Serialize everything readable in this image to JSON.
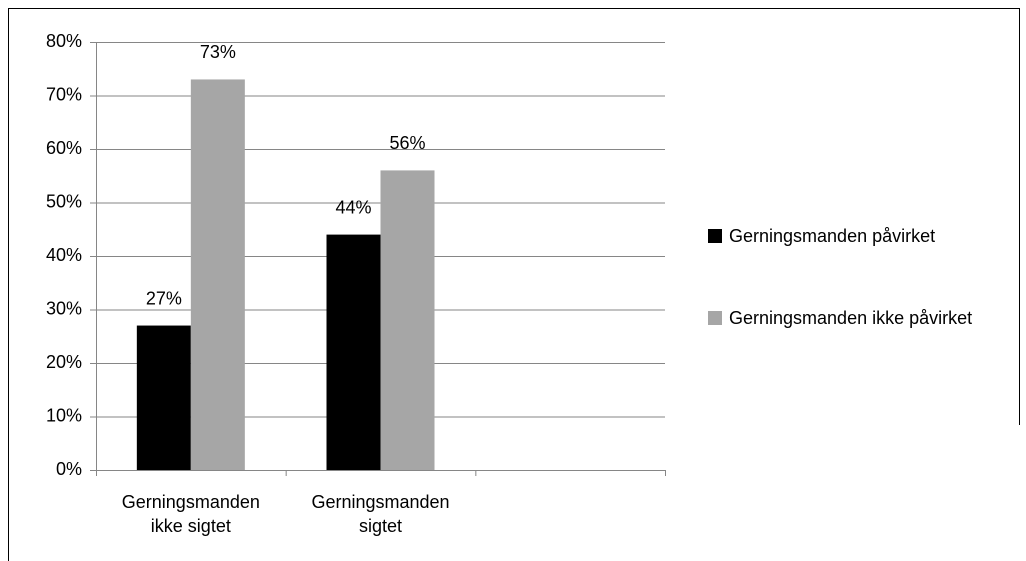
{
  "chart_data": {
    "type": "bar",
    "categories": [
      "Gerningsmanden ikke sigtet",
      "Gerningsmanden sigtet",
      null
    ],
    "series": [
      {
        "name": "Gerningsmanden påvirket",
        "color": "#000000",
        "values": [
          27,
          44,
          null
        ],
        "value_labels": [
          "27%",
          "44%",
          null
        ]
      },
      {
        "name": "Gerningsmanden ikke påvirket",
        "color": "#a6a6a6",
        "values": [
          73,
          56,
          null
        ],
        "value_labels": [
          "73%",
          "56%",
          null
        ]
      }
    ],
    "ylim": [
      0,
      80
    ],
    "yticks": [
      {
        "value": 0,
        "label": "0%"
      },
      {
        "value": 10,
        "label": "10%"
      },
      {
        "value": 20,
        "label": "20%"
      },
      {
        "value": 30,
        "label": "30%"
      },
      {
        "value": 40,
        "label": "40%"
      },
      {
        "value": 50,
        "label": "50%"
      },
      {
        "value": 60,
        "label": "60%"
      },
      {
        "value": 70,
        "label": "70%"
      },
      {
        "value": 80,
        "label": "80%"
      }
    ],
    "grid": true,
    "legend": "right"
  }
}
